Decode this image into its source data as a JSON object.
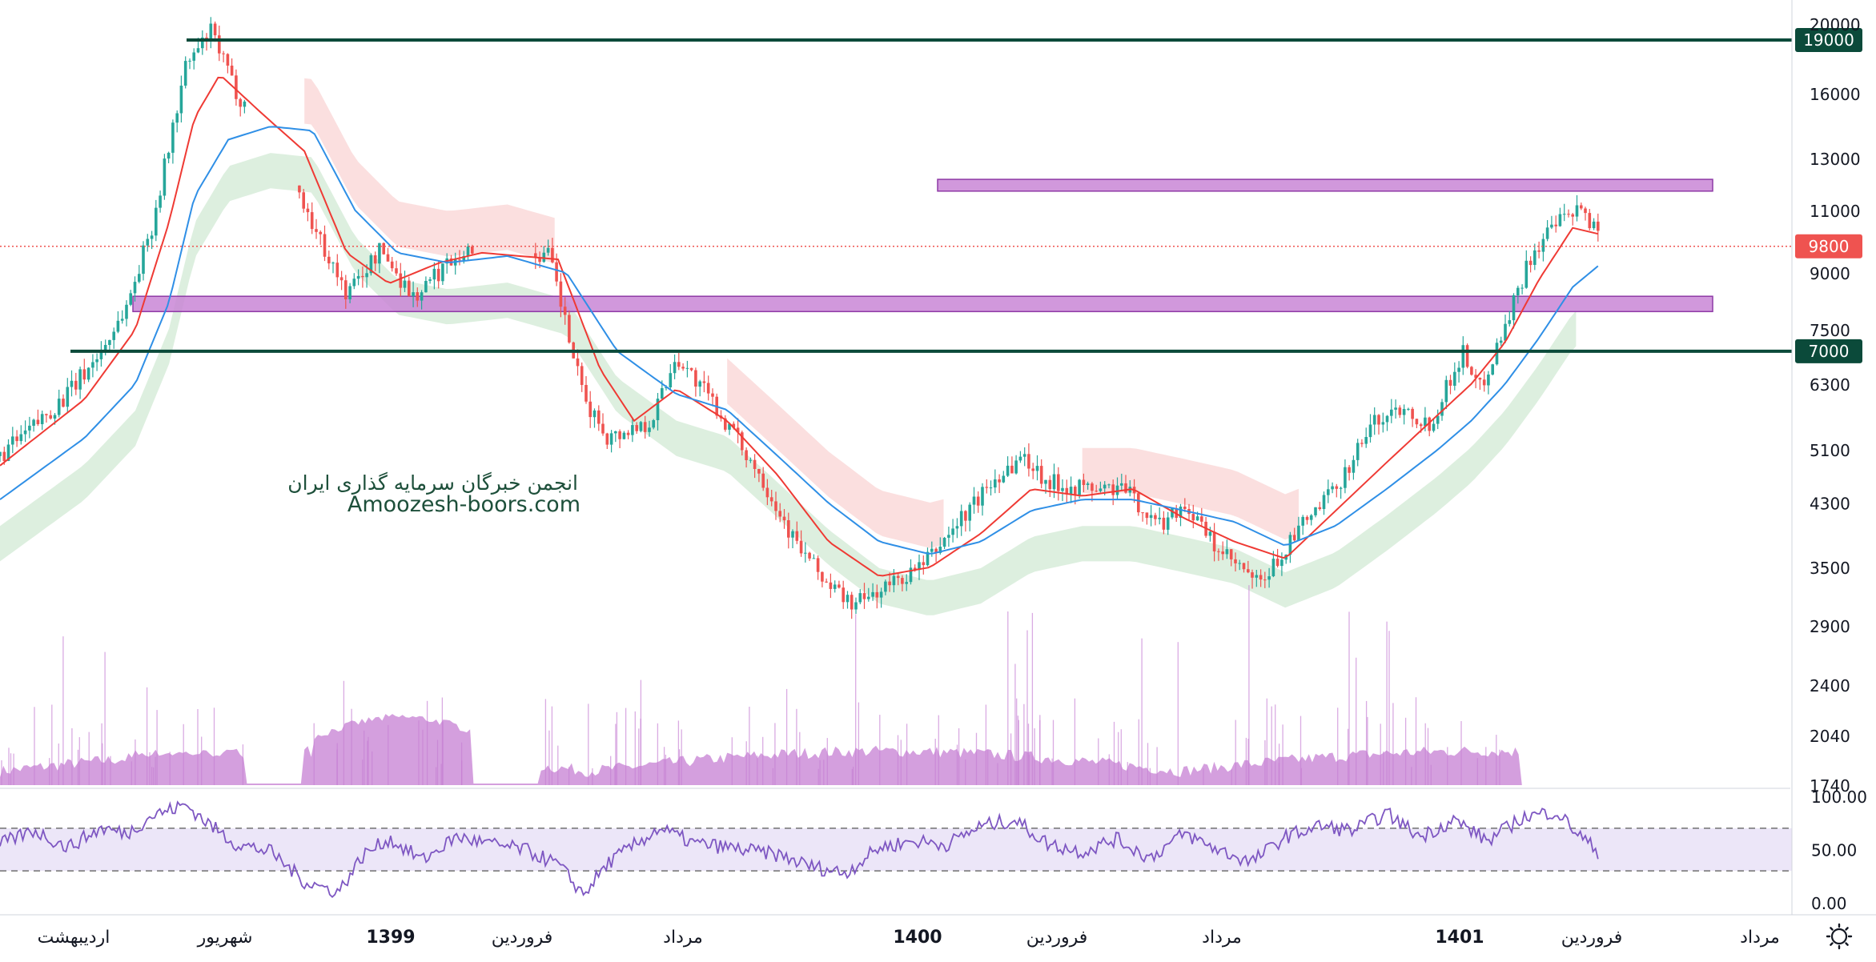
{
  "watermark": {
    "line1": "انجمن خبرگان سرمایه گذاری ایران",
    "line2": "Amoozesh-boors.com"
  },
  "colors": {
    "level_line": "#0b4a3a",
    "zone_fill": "#c986d6",
    "zone_stroke": "#8e3aa6",
    "current_price": "#ef5350",
    "ema_fast": "#ef3a34",
    "ema_slow": "#2f8fe6",
    "up_candle": "#26a69a",
    "down_candle": "#ef5350",
    "cloud_green": "#d7ecd9",
    "cloud_red": "#fbdcdc",
    "volume": "#c67fd3",
    "rsi_line": "#7e57c2",
    "rsi_band": "#ece6f8"
  },
  "chart_data": {
    "type": "candlestick",
    "y_scale": "log",
    "ylim": [
      1740,
      20000
    ],
    "y_ticks": [
      "20000",
      "16000",
      "13000",
      "11000",
      "9000",
      "7500",
      "6300",
      "5100",
      "4300",
      "3500",
      "2900",
      "2400",
      "2040",
      "1740"
    ],
    "x_ticks": [
      {
        "label": "اردیبهشت",
        "bold": false
      },
      {
        "label": "شهریور",
        "bold": false
      },
      {
        "label": "1399",
        "bold": true
      },
      {
        "label": "فروردین",
        "bold": false
      },
      {
        "label": "مرداد",
        "bold": false
      },
      {
        "label": "1400",
        "bold": true
      },
      {
        "label": "فروردین",
        "bold": false
      },
      {
        "label": "مرداد",
        "bold": false
      },
      {
        "label": "1401",
        "bold": true
      },
      {
        "label": "فروردین",
        "bold": false
      },
      {
        "label": "مرداد",
        "bold": false
      }
    ],
    "levels": [
      {
        "value": 19000,
        "label": "19000"
      },
      {
        "value": 7000,
        "label": "7000"
      }
    ],
    "zones": [
      {
        "from": 11700,
        "to": 12150
      },
      {
        "from": 7950,
        "to": 8350
      }
    ],
    "current_price": {
      "value": 9800,
      "label": "9800"
    },
    "price_path": [
      [
        0,
        5000
      ],
      [
        0.02,
        5500
      ],
      [
        0.04,
        6100
      ],
      [
        0.06,
        7000
      ],
      [
        0.075,
        8100
      ],
      [
        0.09,
        10500
      ],
      [
        0.11,
        17500
      ],
      [
        0.125,
        19500
      ],
      [
        0.14,
        16000
      ],
      [
        0.16,
        14200
      ],
      [
        0.185,
        10500
      ],
      [
        0.205,
        8400
      ],
      [
        0.225,
        9700
      ],
      [
        0.245,
        8300
      ],
      [
        0.27,
        9600
      ],
      [
        0.3,
        9700
      ],
      [
        0.325,
        9500
      ],
      [
        0.345,
        6000
      ],
      [
        0.36,
        5300
      ],
      [
        0.385,
        5600
      ],
      [
        0.4,
        6900
      ],
      [
        0.42,
        6000
      ],
      [
        0.45,
        4700
      ],
      [
        0.47,
        3800
      ],
      [
        0.49,
        3300
      ],
      [
        0.505,
        3100
      ],
      [
        0.525,
        3300
      ],
      [
        0.545,
        3500
      ],
      [
        0.565,
        4000
      ],
      [
        0.59,
        4700
      ],
      [
        0.605,
        5000
      ],
      [
        0.62,
        4600
      ],
      [
        0.645,
        4500
      ],
      [
        0.665,
        4500
      ],
      [
        0.685,
        4000
      ],
      [
        0.7,
        4300
      ],
      [
        0.72,
        3700
      ],
      [
        0.745,
        3300
      ],
      [
        0.77,
        4000
      ],
      [
        0.79,
        4500
      ],
      [
        0.81,
        5500
      ],
      [
        0.83,
        5900
      ],
      [
        0.845,
        5500
      ],
      [
        0.865,
        7000
      ],
      [
        0.875,
        6200
      ],
      [
        0.89,
        7600
      ],
      [
        0.905,
        9500
      ],
      [
        0.92,
        10500
      ],
      [
        0.935,
        11000
      ],
      [
        0.945,
        10300
      ]
    ],
    "series": [
      {
        "name": "EMA fast",
        "values": [
          [
            0,
            4850
          ],
          [
            0.05,
            6000
          ],
          [
            0.08,
            7500
          ],
          [
            0.1,
            10600
          ],
          [
            0.115,
            14800
          ],
          [
            0.13,
            17000
          ],
          [
            0.155,
            15000
          ],
          [
            0.18,
            13300
          ],
          [
            0.205,
            9600
          ],
          [
            0.23,
            8700
          ],
          [
            0.26,
            9300
          ],
          [
            0.285,
            9600
          ],
          [
            0.33,
            9400
          ],
          [
            0.355,
            6600
          ],
          [
            0.375,
            5600
          ],
          [
            0.4,
            6200
          ],
          [
            0.43,
            5600
          ],
          [
            0.46,
            4700
          ],
          [
            0.49,
            3800
          ],
          [
            0.52,
            3400
          ],
          [
            0.55,
            3500
          ],
          [
            0.58,
            3900
          ],
          [
            0.61,
            4500
          ],
          [
            0.64,
            4400
          ],
          [
            0.67,
            4500
          ],
          [
            0.7,
            4100
          ],
          [
            0.73,
            3800
          ],
          [
            0.76,
            3600
          ],
          [
            0.79,
            4200
          ],
          [
            0.82,
            4900
          ],
          [
            0.85,
            5700
          ],
          [
            0.87,
            6300
          ],
          [
            0.89,
            7200
          ],
          [
            0.91,
            8800
          ],
          [
            0.93,
            10400
          ],
          [
            0.945,
            10200
          ]
        ]
      },
      {
        "name": "EMA slow",
        "values": [
          [
            0,
            4350
          ],
          [
            0.05,
            5300
          ],
          [
            0.08,
            6300
          ],
          [
            0.1,
            8200
          ],
          [
            0.115,
            11500
          ],
          [
            0.135,
            13800
          ],
          [
            0.16,
            14400
          ],
          [
            0.185,
            14200
          ],
          [
            0.21,
            11000
          ],
          [
            0.235,
            9600
          ],
          [
            0.265,
            9300
          ],
          [
            0.3,
            9500
          ],
          [
            0.335,
            9000
          ],
          [
            0.365,
            7000
          ],
          [
            0.4,
            6100
          ],
          [
            0.43,
            5800
          ],
          [
            0.46,
            5000
          ],
          [
            0.49,
            4300
          ],
          [
            0.52,
            3800
          ],
          [
            0.55,
            3650
          ],
          [
            0.58,
            3800
          ],
          [
            0.61,
            4200
          ],
          [
            0.64,
            4350
          ],
          [
            0.67,
            4350
          ],
          [
            0.7,
            4200
          ],
          [
            0.73,
            4050
          ],
          [
            0.76,
            3750
          ],
          [
            0.79,
            4000
          ],
          [
            0.82,
            4500
          ],
          [
            0.85,
            5100
          ],
          [
            0.87,
            5600
          ],
          [
            0.89,
            6300
          ],
          [
            0.91,
            7300
          ],
          [
            0.93,
            8600
          ],
          [
            0.945,
            9200
          ]
        ]
      }
    ],
    "rsi": {
      "ylim": [
        0,
        100
      ],
      "y_ticks": [
        "100.00",
        "50.00",
        "0.00"
      ],
      "bands": [
        70,
        30
      ],
      "values": [
        [
          0,
          55
        ],
        [
          0.02,
          68
        ],
        [
          0.04,
          52
        ],
        [
          0.06,
          70
        ],
        [
          0.075,
          65
        ],
        [
          0.09,
          82
        ],
        [
          0.11,
          92
        ],
        [
          0.125,
          72
        ],
        [
          0.14,
          55
        ],
        [
          0.16,
          48
        ],
        [
          0.18,
          20
        ],
        [
          0.2,
          10
        ],
        [
          0.215,
          45
        ],
        [
          0.23,
          60
        ],
        [
          0.25,
          40
        ],
        [
          0.27,
          62
        ],
        [
          0.29,
          55
        ],
        [
          0.31,
          50
        ],
        [
          0.33,
          36
        ],
        [
          0.345,
          8
        ],
        [
          0.36,
          38
        ],
        [
          0.39,
          70
        ],
        [
          0.41,
          56
        ],
        [
          0.43,
          52
        ],
        [
          0.46,
          45
        ],
        [
          0.48,
          34
        ],
        [
          0.5,
          28
        ],
        [
          0.52,
          52
        ],
        [
          0.54,
          58
        ],
        [
          0.56,
          55
        ],
        [
          0.58,
          72
        ],
        [
          0.6,
          78
        ],
        [
          0.62,
          55
        ],
        [
          0.64,
          48
        ],
        [
          0.66,
          60
        ],
        [
          0.68,
          42
        ],
        [
          0.7,
          65
        ],
        [
          0.72,
          50
        ],
        [
          0.74,
          38
        ],
        [
          0.76,
          62
        ],
        [
          0.78,
          72
        ],
        [
          0.8,
          68
        ],
        [
          0.82,
          84
        ],
        [
          0.84,
          62
        ],
        [
          0.86,
          78
        ],
        [
          0.88,
          58
        ],
        [
          0.9,
          80
        ],
        [
          0.92,
          86
        ],
        [
          0.935,
          62
        ],
        [
          0.945,
          48
        ]
      ]
    }
  }
}
